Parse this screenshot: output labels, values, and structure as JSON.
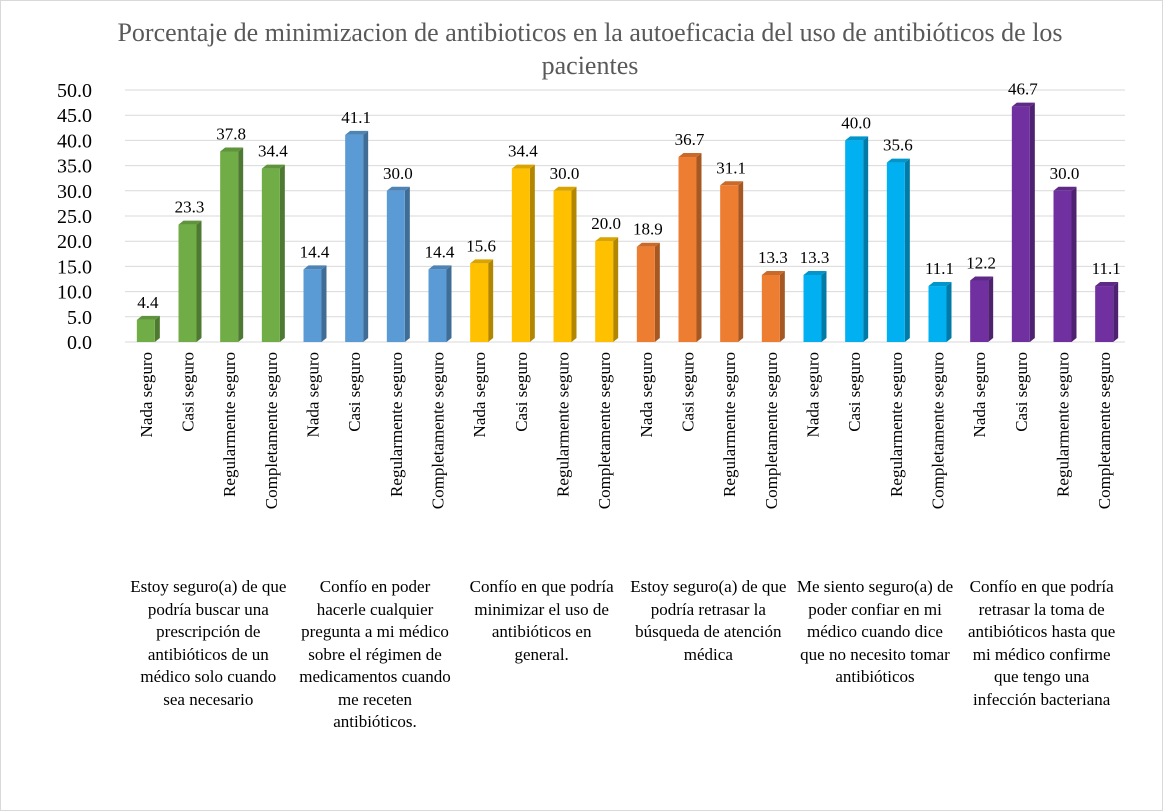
{
  "chart_data": {
    "type": "bar",
    "title": "Porcentaje de minimizacion de antibioticos en la autoeficacia del uso de antibióticos de los  pacientes",
    "ylim": [
      0,
      50
    ],
    "yticks": [
      {
        "value": 0,
        "label": "0.0"
      },
      {
        "value": 5,
        "label": "5.0"
      },
      {
        "value": 10,
        "label": "10.0"
      },
      {
        "value": 15,
        "label": "15.0"
      },
      {
        "value": 20,
        "label": "20.0"
      },
      {
        "value": 25,
        "label": "25.0"
      },
      {
        "value": 30,
        "label": "30.0"
      },
      {
        "value": 35,
        "label": "35.0"
      },
      {
        "value": 40,
        "label": "40.0"
      },
      {
        "value": 45,
        "label": "45.0"
      },
      {
        "value": 50,
        "label": "50.0"
      }
    ],
    "grid": true,
    "groups": [
      {
        "label": "Estoy seguro(a) de que podría buscar una prescripción de antibióticos de un médico solo cuando sea necesario",
        "color": "#70ad47",
        "categories": [
          "Nada seguro",
          "Casi seguro",
          "Regularmente seguro",
          "Completamente seguro"
        ],
        "values": [
          4.4,
          23.3,
          37.8,
          34.4
        ],
        "value_labels": [
          "4.4",
          "23.3",
          "37.8",
          "34.4"
        ]
      },
      {
        "label": "Confío en poder hacerle cualquier pregunta a mi médico sobre el régimen de medicamentos cuando me receten antibióticos.",
        "color": "#5b9bd5",
        "categories": [
          "Nada seguro",
          "Casi seguro",
          "Regularmente seguro",
          "Completamente seguro"
        ],
        "values": [
          14.4,
          41.1,
          30,
          14.4
        ],
        "value_labels": [
          "14.4",
          "41.1",
          "30.0",
          "14.4"
        ]
      },
      {
        "label": "Confío en que podría minimizar el uso de antibióticos en general.",
        "color": "#ffc000",
        "categories": [
          "Nada seguro",
          "Casi seguro",
          "Regularmente seguro",
          "Completamente seguro"
        ],
        "values": [
          15.6,
          34.4,
          30,
          20
        ],
        "value_labels": [
          "15.6",
          "34.4",
          "30.0",
          "20.0"
        ]
      },
      {
        "label": "Estoy seguro(a) de que podría retrasar la búsqueda de atención médica",
        "color": "#ed7d31",
        "categories": [
          "Nada seguro",
          "Casi seguro",
          "Regularmente seguro",
          "Completamente seguro"
        ],
        "values": [
          18.9,
          36.7,
          31.1,
          13.3
        ],
        "value_labels": [
          "18.9",
          "36.7",
          "31.1",
          "13.3"
        ]
      },
      {
        "label": "Me siento seguro(a) de poder confiar en mi médico cuando dice que no necesito tomar antibióticos",
        "color": "#00b0f0",
        "categories": [
          "Nada seguro",
          "Casi seguro",
          "Regularmente seguro",
          "Completamente seguro"
        ],
        "values": [
          13.3,
          40,
          35.6,
          11.1
        ],
        "value_labels": [
          "13.3",
          "40.0",
          "35.6",
          "11.1"
        ]
      },
      {
        "label": "Confío en que podría retrasar la toma de antibióticos hasta que mi médico confirme que tengo una infección bacteriana",
        "color": "#7030a0",
        "categories": [
          "Nada seguro",
          "Casi seguro",
          "Regularmente seguro",
          "Completamente seguro"
        ],
        "values": [
          12.2,
          46.7,
          30,
          11.1
        ],
        "value_labels": [
          "12.2",
          "46.7",
          "30.0",
          "11.1"
        ]
      }
    ]
  }
}
